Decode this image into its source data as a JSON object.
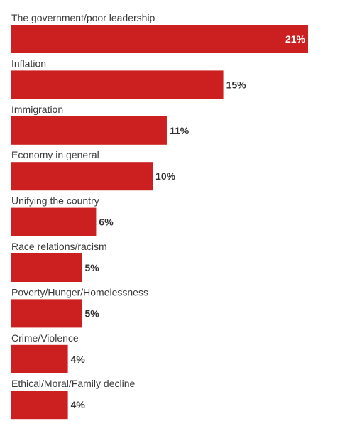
{
  "chart_data": {
    "type": "bar",
    "orientation": "horizontal",
    "title": "",
    "xlabel": "",
    "ylabel": "",
    "categories": [
      "The government/poor leadership",
      "Inflation",
      "Immigration",
      "Economy in general",
      "Unifying the country",
      "Race relations/racism",
      "Poverty/Hunger/Homelessness",
      "Crime/Violence",
      "Ethical/Moral/Family decline"
    ],
    "values": [
      21,
      15,
      11,
      10,
      6,
      5,
      5,
      4,
      4
    ],
    "value_labels": [
      "21%",
      "15%",
      "11%",
      "10%",
      "6%",
      "5%",
      "5%",
      "4%",
      "4%"
    ],
    "xlim": [
      0,
      21
    ],
    "grid": false,
    "colors": {
      "bar": "#cc1f1f",
      "label_outside": "#333333",
      "label_inside": "#ffffff",
      "category_text": "#3a3a3a"
    }
  }
}
